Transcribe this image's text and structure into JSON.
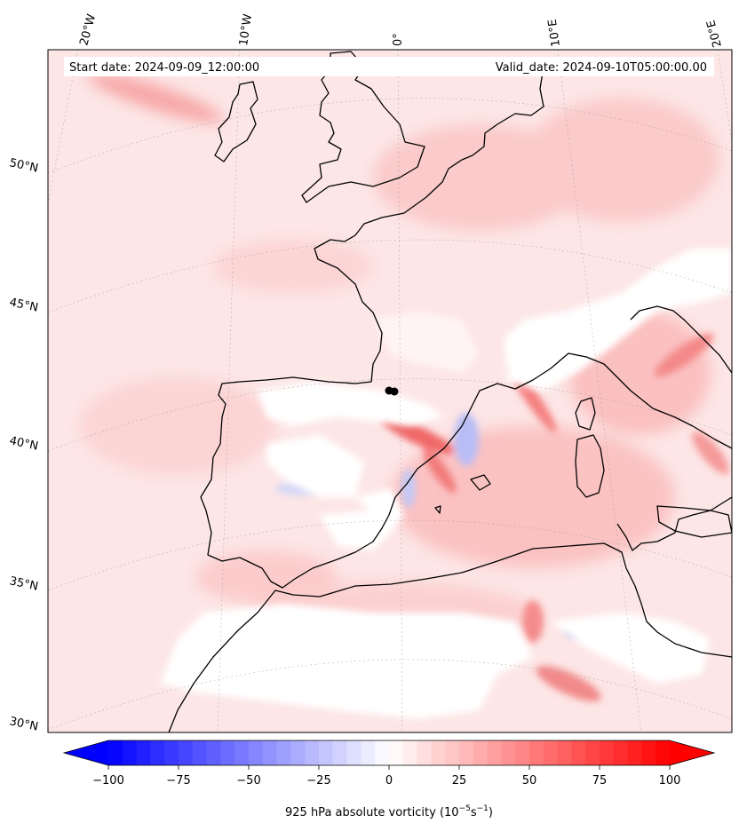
{
  "map": {
    "start_date": "Start date: 2024-09-09_12:00:00",
    "valid_date": "Valid_date: 2024-09-10T05:00:00.00",
    "lon_labels": [
      "20°W",
      "10°W",
      "0°",
      "10°E",
      "20°E"
    ],
    "lat_labels": [
      "50°N",
      "45°N",
      "40°N",
      "35°N",
      "30°N"
    ],
    "colors": {
      "positive": "#ff0000",
      "negative": "#0000ff",
      "neutral": "#ffffff",
      "coast": "#000000"
    }
  },
  "colorbar": {
    "title_main": "925 hPa absolute vorticity (10",
    "title_sup1": "−5",
    "title_mid": "s",
    "title_sup2": "−1",
    "title_end": ")",
    "ticks": [
      "−100",
      "−75",
      "−50",
      "−25",
      "0",
      "25",
      "50",
      "75",
      "100"
    ],
    "range": [
      -100,
      100
    ],
    "levels": 40
  }
}
